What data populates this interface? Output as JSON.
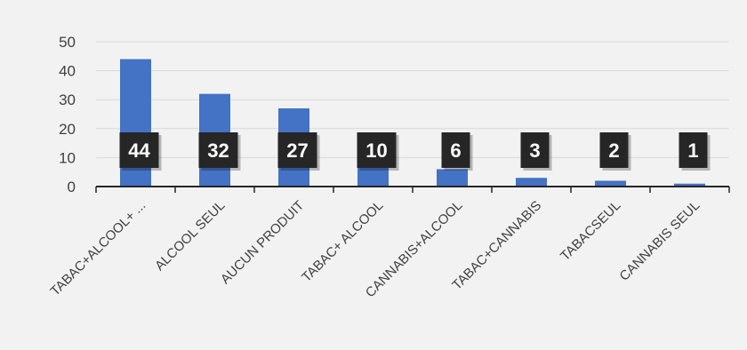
{
  "chart_data": {
    "type": "bar",
    "title": "",
    "xlabel": "",
    "ylabel": "",
    "categories": [
      "TABAC+ALCOOL+ ...",
      "ALCOOL SEUL",
      "AUCUN PRODUIT",
      "TABAC+ ALCOOL",
      "CANNABIS+ALCOOL",
      "TABAC+CANNABIS",
      "TABACSEUL",
      "CANNABIS SEUL"
    ],
    "values": [
      44,
      32,
      27,
      10,
      6,
      3,
      2,
      1
    ],
    "data_labels": [
      "44",
      "32",
      "27",
      "10",
      "6",
      "3",
      "2",
      "1"
    ],
    "ylim": [
      0,
      50
    ],
    "y_ticks": [
      "0",
      "10",
      "20",
      "30",
      "40",
      "50"
    ],
    "grid": true,
    "legend": "none",
    "colors": {
      "bar": "#4472c4",
      "label_box": "#262626",
      "label_text": "#ffffff",
      "axis_text": "#404040",
      "gridline": "#d9d9d9",
      "background": "#f2f2f2"
    }
  }
}
